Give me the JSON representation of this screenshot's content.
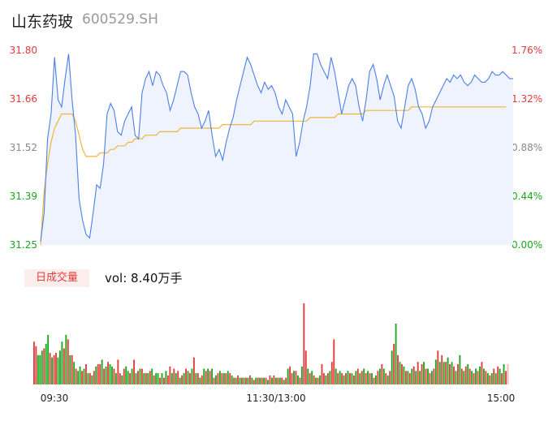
{
  "header": {
    "stock_name": "山东药玻",
    "stock_code": "600529.SH"
  },
  "volume_panel": {
    "tag": "日成交量",
    "volume_text": "vol: 8.40万手"
  },
  "colors": {
    "price_line": "#4c7fe6",
    "avg_line": "#f0b43c",
    "area_fill": "#eef3fd",
    "up": "#e23b3b",
    "down": "#1ba61b",
    "flat": "#888888",
    "last_bar": "#f4b3b3"
  },
  "chart_data": {
    "type": "line",
    "y_left_ticks": [
      "31.80",
      "31.66",
      "31.52",
      "31.39",
      "31.25"
    ],
    "y_right_ticks": [
      "1.76%",
      "1.32%",
      "0.88%",
      "0.44%",
      "0.00%"
    ],
    "ylim": [
      31.25,
      31.8
    ],
    "x_ticks": [
      "09:30",
      "11:30/13:00",
      "15:00"
    ],
    "series": [
      {
        "values": [
          31.26,
          31.34,
          31.55,
          31.62,
          31.78,
          31.66,
          31.64,
          31.72,
          31.79,
          31.66,
          31.56,
          31.38,
          31.32,
          31.28,
          31.27,
          31.34,
          31.42,
          31.41,
          31.48,
          31.62,
          31.65,
          31.63,
          31.57,
          31.56,
          31.6,
          31.62,
          31.64,
          31.56,
          31.55,
          31.68,
          31.72,
          31.74,
          31.7,
          31.74,
          31.73,
          31.7,
          31.68,
          31.63,
          31.66,
          31.7,
          31.74,
          31.74,
          31.73,
          31.68,
          31.64,
          31.62,
          31.58,
          31.6,
          31.63,
          31.56,
          31.5,
          31.52,
          31.49,
          31.54,
          31.58,
          31.61,
          31.66,
          31.7,
          31.74,
          31.78,
          31.76,
          31.73,
          31.7,
          31.68,
          31.71,
          31.69,
          31.7,
          31.68,
          31.64,
          31.62,
          31.66,
          31.64,
          31.62,
          31.5,
          31.54,
          31.6,
          31.64,
          31.7,
          31.79,
          31.79,
          31.76,
          31.74,
          31.72,
          31.78,
          31.74,
          31.68,
          31.62,
          31.66,
          31.7,
          31.72,
          31.7,
          31.64,
          31.6,
          31.66,
          31.74,
          31.76,
          31.72,
          31.66,
          31.7,
          31.73,
          31.7,
          31.67,
          31.6,
          31.58,
          31.64,
          31.7,
          31.72,
          31.69,
          31.64,
          31.62,
          31.58,
          31.6,
          31.64,
          31.66,
          31.68,
          31.7,
          31.72,
          31.71,
          31.73,
          31.72,
          31.73,
          31.71,
          31.7,
          31.71,
          31.73,
          31.72,
          31.71,
          31.71,
          31.72,
          31.74,
          31.73,
          31.73,
          31.74,
          31.73,
          31.72,
          31.72
        ]
      },
      {
        "values": [
          31.25,
          31.4,
          31.48,
          31.54,
          31.58,
          31.6,
          31.62,
          31.62,
          31.62,
          31.62,
          31.6,
          31.56,
          31.52,
          31.5,
          31.5,
          31.5,
          31.5,
          31.51,
          31.51,
          31.51,
          31.52,
          31.52,
          31.53,
          31.53,
          31.53,
          31.54,
          31.54,
          31.55,
          31.55,
          31.55,
          31.56,
          31.56,
          31.56,
          31.56,
          31.57,
          31.57,
          31.57,
          31.57,
          31.57,
          31.57,
          31.58,
          31.58,
          31.58,
          31.58,
          31.58,
          31.58,
          31.58,
          31.58,
          31.58,
          31.58,
          31.58,
          31.58,
          31.59,
          31.59,
          31.59,
          31.59,
          31.59,
          31.59,
          31.59,
          31.59,
          31.59,
          31.6,
          31.6,
          31.6,
          31.6,
          31.6,
          31.6,
          31.6,
          31.6,
          31.6,
          31.6,
          31.6,
          31.6,
          31.6,
          31.6,
          31.6,
          31.6,
          31.61,
          31.61,
          31.61,
          31.61,
          31.61,
          31.61,
          31.61,
          31.61,
          31.62,
          31.62,
          31.62,
          31.62,
          31.62,
          31.62,
          31.62,
          31.62,
          31.63,
          31.63,
          31.63,
          31.63,
          31.63,
          31.63,
          31.63,
          31.63,
          31.63,
          31.63,
          31.63,
          31.63,
          31.63,
          31.64,
          31.64,
          31.64,
          31.64,
          31.64,
          31.64,
          31.64,
          31.64,
          31.64,
          31.64,
          31.64,
          31.64,
          31.64,
          31.64,
          31.64,
          31.64,
          31.64,
          31.64,
          31.64,
          31.64,
          31.64,
          31.64,
          31.64,
          31.64,
          31.64,
          31.64,
          31.64,
          31.64
        ]
      }
    ],
    "volume": {
      "values": [
        38,
        34,
        26,
        26,
        30,
        32,
        36,
        44,
        28,
        24,
        26,
        28,
        24,
        30,
        38,
        32,
        44,
        40,
        26,
        26,
        20,
        14,
        12,
        16,
        12,
        14,
        18,
        10,
        10,
        8,
        12,
        16,
        18,
        18,
        22,
        14,
        16,
        20,
        18,
        16,
        14,
        10,
        22,
        10,
        8,
        14,
        16,
        12,
        10,
        14,
        22,
        10,
        12,
        14,
        14,
        10,
        10,
        10,
        12,
        14,
        8,
        10,
        10,
        6,
        10,
        6,
        12,
        8,
        16,
        10,
        14,
        10,
        12,
        6,
        8,
        10,
        14,
        12,
        10,
        14,
        24,
        10,
        10,
        6,
        8,
        14,
        12,
        14,
        12,
        14,
        6,
        8,
        10,
        12,
        10,
        10,
        10,
        12,
        10,
        8,
        6,
        6,
        8,
        6,
        6,
        6,
        6,
        6,
        8,
        6,
        4,
        6,
        6,
        6,
        6,
        6,
        6,
        4,
        8,
        6,
        8,
        6,
        6,
        6,
        6,
        4,
        6,
        14,
        16,
        10,
        12,
        12,
        8,
        6,
        16,
        72,
        30,
        14,
        10,
        12,
        8,
        6,
        6,
        8,
        18,
        10,
        8,
        10,
        12,
        20,
        40,
        14,
        10,
        12,
        10,
        8,
        10,
        12,
        10,
        10,
        8,
        12,
        14,
        10,
        12,
        14,
        10,
        12,
        10,
        10,
        6,
        8,
        12,
        14,
        18,
        14,
        10,
        8,
        12,
        30,
        36,
        54,
        26,
        20,
        18,
        16,
        12,
        12,
        10,
        14,
        16,
        12,
        20,
        12,
        18,
        20,
        14,
        14,
        10,
        12,
        14,
        22,
        30,
        20,
        26,
        20,
        20,
        24,
        18,
        20,
        16,
        12,
        18,
        26,
        14,
        12,
        16,
        18,
        14,
        12,
        10,
        14,
        12,
        16,
        20,
        14,
        12,
        10,
        8,
        10,
        14,
        10,
        16,
        14,
        10,
        18,
        12,
        18
      ],
      "colors": [
        "u",
        "u",
        "d",
        "d",
        "d",
        "u",
        "d",
        "d",
        "u",
        "d",
        "u",
        "u",
        "d",
        "d",
        "d",
        "u",
        "d",
        "u",
        "d",
        "u",
        "d",
        "u",
        "d",
        "d",
        "u",
        "d",
        "u",
        "d",
        "u",
        "d",
        "u",
        "d",
        "u",
        "u",
        "d",
        "u",
        "d",
        "u",
        "d",
        "d",
        "u",
        "d",
        "u",
        "u",
        "d",
        "u",
        "d",
        "d",
        "u",
        "d",
        "u",
        "d",
        "u",
        "d",
        "u",
        "d",
        "u",
        "d",
        "u",
        "d",
        "u",
        "d",
        "d",
        "u",
        "d",
        "u",
        "d",
        "u",
        "u",
        "d",
        "u",
        "d",
        "u",
        "d",
        "u",
        "d",
        "u",
        "d",
        "u",
        "d",
        "u",
        "d",
        "u",
        "d",
        "u",
        "d",
        "u",
        "d",
        "u",
        "d",
        "u",
        "d",
        "u",
        "d",
        "u",
        "d",
        "u",
        "d",
        "u",
        "d",
        "u",
        "d",
        "u",
        "d",
        "u",
        "d",
        "u",
        "d",
        "u",
        "d",
        "u",
        "d",
        "u",
        "d",
        "u",
        "d",
        "u",
        "d",
        "u",
        "d",
        "u",
        "d",
        "u",
        "d",
        "u",
        "d",
        "u",
        "d",
        "u",
        "u",
        "d",
        "u",
        "d",
        "u",
        "d",
        "u",
        "u",
        "d",
        "u",
        "d",
        "u",
        "d",
        "u",
        "d",
        "u",
        "u",
        "d",
        "u",
        "d",
        "u",
        "u",
        "d",
        "u",
        "d",
        "u",
        "d",
        "u",
        "d",
        "u",
        "d",
        "u",
        "d",
        "u",
        "d",
        "u",
        "d",
        "u",
        "d",
        "u",
        "d",
        "u",
        "d",
        "u",
        "d",
        "u",
        "d",
        "u",
        "d",
        "u",
        "d",
        "u",
        "d",
        "u",
        "d",
        "u",
        "d",
        "u",
        "d",
        "u",
        "d",
        "u",
        "d",
        "u",
        "d",
        "u",
        "d",
        "u",
        "d",
        "u",
        "d",
        "u",
        "d",
        "u",
        "d",
        "u",
        "d",
        "u",
        "d",
        "u",
        "d",
        "u",
        "d",
        "u",
        "d",
        "u",
        "d",
        "u",
        "d",
        "u",
        "d",
        "u",
        "d",
        "u",
        "d",
        "u",
        "d",
        "u",
        "d",
        "u",
        "d",
        "u",
        "d",
        "u",
        "d",
        "u",
        "d",
        "u",
        "d",
        "u",
        "d",
        "u",
        "d",
        "u",
        "d",
        "u",
        "d",
        "u",
        "d",
        "u",
        "d",
        "u",
        "d",
        "u",
        "d",
        "u",
        "d",
        "u",
        "d"
      ]
    }
  }
}
